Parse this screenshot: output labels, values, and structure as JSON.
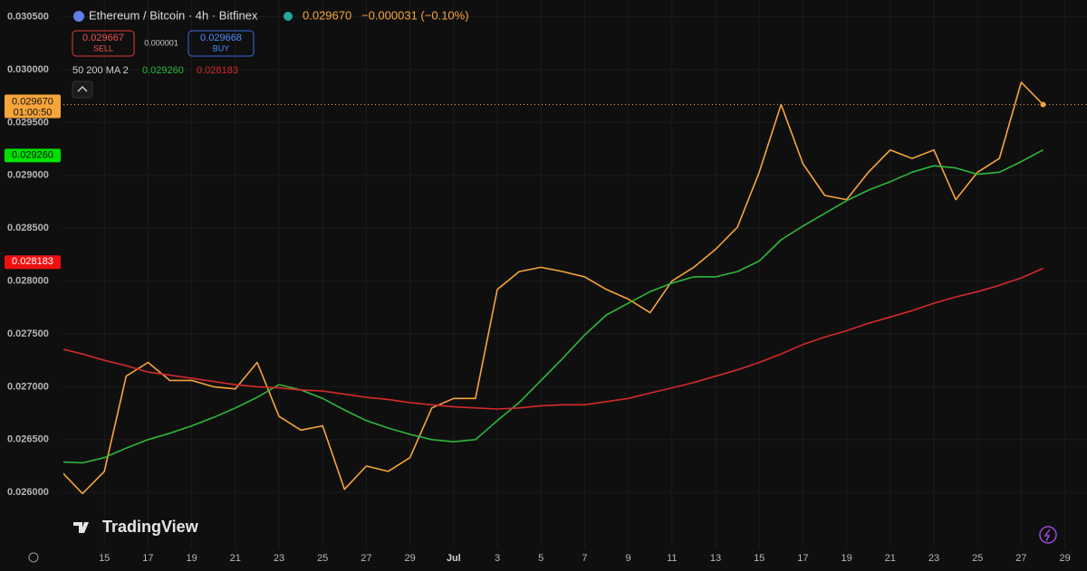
{
  "header": {
    "title": "Ethereum / Bitcoin · 4h · Bitfinex",
    "last_price": "0.029670",
    "change": "−0.000031 (−0.10%)",
    "sell_price": "0.029667",
    "sell_label": "SELL",
    "spread": "0.000001",
    "buy_price": "0.029668",
    "buy_label": "BUY",
    "indicator_label": "50 200 MA 2",
    "ma50_value": "0.029260",
    "ma200_value": "0.028183",
    "price_tag": "0.029670",
    "countdown": "01:00:50",
    "ma50_tag": "0.029260",
    "ma200_tag": "0.028183",
    "logo": "TradingView"
  },
  "chart_data": {
    "type": "line",
    "categories": [
      null,
      null,
      "15",
      null,
      "17",
      null,
      "19",
      null,
      "21",
      null,
      "23",
      null,
      "25",
      null,
      "27",
      null,
      "29",
      null,
      "Jul",
      null,
      "3",
      null,
      "5",
      null,
      "7",
      null,
      "9",
      null,
      "11",
      null,
      "13",
      null,
      "15",
      null,
      "17",
      null,
      "19",
      null,
      "21",
      null,
      "23",
      null,
      "25",
      null,
      "27",
      null,
      "29"
    ],
    "series": [
      {
        "color": "#f7a53a",
        "values": [
          0.026205,
          0.02599,
          0.0262,
          0.0271,
          0.02723,
          0.02706,
          0.02706,
          0.027,
          0.02698,
          0.02723,
          0.02672,
          0.02659,
          0.02663,
          0.02603,
          0.02625,
          0.0262,
          0.02633,
          0.0268,
          0.02689,
          0.02689,
          0.02792,
          0.02809,
          0.02813,
          0.02809,
          0.02804,
          0.02792,
          0.02783,
          0.0277,
          0.028,
          0.02813,
          0.0283,
          0.02851,
          0.02903,
          0.02967,
          0.02911,
          0.02881,
          0.02877,
          0.02903,
          0.02924,
          0.02916,
          0.02924,
          0.02877,
          0.02903,
          0.02916,
          0.02988,
          0.02967,
          null
        ]
      },
      {
        "color": "#2fb83a",
        "values": [
          0.02629,
          0.02628,
          0.02633,
          0.02642,
          0.0265,
          0.02656,
          0.02663,
          0.02671,
          0.0268,
          0.0269,
          0.02702,
          0.02697,
          0.02689,
          0.02678,
          0.02668,
          0.02661,
          0.02655,
          0.0265,
          0.02648,
          0.0265,
          0.02668,
          0.02685,
          0.02706,
          0.02727,
          0.02749,
          0.02768,
          0.02779,
          0.0279,
          0.02798,
          0.02804,
          0.02804,
          0.02809,
          0.02819,
          0.02839,
          0.02852,
          0.02864,
          0.02876,
          0.02886,
          0.02894,
          0.02903,
          0.02909,
          0.02907,
          0.02901,
          0.02903,
          0.02913,
          0.02924,
          null
        ]
      },
      {
        "color": "#d42a2a",
        "values": [
          0.02736,
          0.02731,
          0.02725,
          0.0272,
          0.02714,
          0.02711,
          0.02708,
          0.02705,
          0.02702,
          0.027,
          0.02699,
          0.02697,
          0.02696,
          0.02693,
          0.0269,
          0.02688,
          0.02685,
          0.02683,
          0.02681,
          0.0268,
          0.02679,
          0.0268,
          0.02682,
          0.02683,
          0.02683,
          0.02686,
          0.02689,
          0.02694,
          0.02699,
          0.02704,
          0.0271,
          0.02716,
          0.02723,
          0.02731,
          0.0274,
          0.02747,
          0.02753,
          0.0276,
          0.02766,
          0.02772,
          0.02779,
          0.02785,
          0.0279,
          0.02796,
          0.02803,
          0.02812,
          null
        ]
      }
    ],
    "ylim": [
      0.02548,
      0.03059
    ],
    "yticks": [
      {
        "value": 0.026,
        "label": "0.026000"
      },
      {
        "value": 0.0265,
        "label": "0.026500"
      },
      {
        "value": 0.027,
        "label": "0.027000"
      },
      {
        "value": 0.0275,
        "label": "0.027500"
      },
      {
        "value": 0.028,
        "label": "0.028000"
      },
      {
        "value": 0.0285,
        "label": "0.028500"
      },
      {
        "value": 0.029,
        "label": "0.029000"
      },
      {
        "value": 0.0295,
        "label": "0.029500"
      },
      {
        "value": 0.03,
        "label": "0.030000"
      },
      {
        "value": 0.0305,
        "label": "0.030500"
      }
    ],
    "grid": true
  }
}
